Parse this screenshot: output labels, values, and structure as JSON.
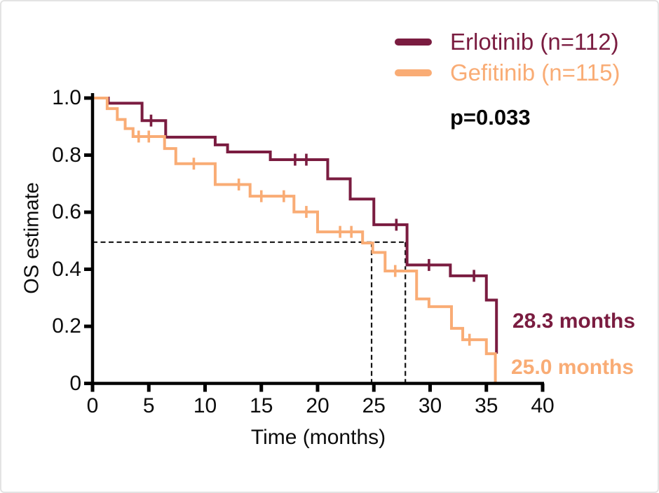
{
  "chart_data": {
    "type": "line",
    "subtype": "kaplan-meier-step",
    "title": "",
    "xlabel": "Time (months)",
    "ylabel": "OS estimate",
    "xlim": [
      0,
      40
    ],
    "ylim": [
      0,
      1
    ],
    "grid": false,
    "legend_position": "top-right",
    "x_ticks": [
      0,
      5,
      10,
      15,
      20,
      25,
      30,
      35,
      40
    ],
    "y_ticks": [
      {
        "value": 1.0,
        "label": "1.0"
      },
      {
        "value": 0.8,
        "label": "0.8"
      },
      {
        "value": 0.6,
        "label": "0.6"
      },
      {
        "value": 0.4,
        "label": "0.4"
      },
      {
        "value": 0.2,
        "label": "0.2"
      },
      {
        "value": 0.0,
        "label": "0"
      }
    ],
    "annotations": {
      "p_value": "p=0.033"
    },
    "median_dashes": {
      "y": 0.495,
      "h_start": 0,
      "h_end": 27.8,
      "verticals": [
        24.8,
        27.8
      ],
      "color": "#141414"
    },
    "series": [
      {
        "name": "Erlotinib (n=112)",
        "color": "#7A1C40",
        "median_label": "28.3 months",
        "median_months": 28.3,
        "points": [
          [
            0,
            1.0
          ],
          [
            1.4,
            0.982
          ],
          [
            4.4,
            0.921
          ],
          [
            6.5,
            0.863
          ],
          [
            10.9,
            0.836
          ],
          [
            12.0,
            0.811
          ],
          [
            15.8,
            0.784
          ],
          [
            20.9,
            0.717
          ],
          [
            22.9,
            0.646
          ],
          [
            25.0,
            0.556
          ],
          [
            27.95,
            0.415
          ],
          [
            31.8,
            0.377
          ],
          [
            35.0,
            0.292
          ],
          [
            35.9,
            0.104
          ]
        ],
        "censors": [
          [
            5.2,
            0.921
          ],
          [
            18.0,
            0.784
          ],
          [
            19.0,
            0.784
          ],
          [
            27.0,
            0.556
          ],
          [
            29.9,
            0.415
          ],
          [
            33.9,
            0.377
          ]
        ]
      },
      {
        "name": "Gefitinib (n=115)",
        "color": "#F9AC75",
        "median_label": "25.0 months",
        "median_months": 25.0,
        "points": [
          [
            0,
            1.0
          ],
          [
            1.3,
            0.963
          ],
          [
            2.2,
            0.925
          ],
          [
            2.9,
            0.893
          ],
          [
            3.6,
            0.865
          ],
          [
            6.4,
            0.823
          ],
          [
            7.4,
            0.77
          ],
          [
            10.9,
            0.697
          ],
          [
            14.0,
            0.656
          ],
          [
            17.9,
            0.601
          ],
          [
            20.0,
            0.531
          ],
          [
            24.0,
            0.492
          ],
          [
            24.9,
            0.459
          ],
          [
            26.0,
            0.394
          ],
          [
            28.8,
            0.296
          ],
          [
            29.9,
            0.269
          ],
          [
            31.9,
            0.193
          ],
          [
            32.9,
            0.153
          ],
          [
            35.0,
            0.104
          ],
          [
            35.8,
            0.0
          ]
        ],
        "censors": [
          [
            4.1,
            0.865
          ],
          [
            5.0,
            0.865
          ],
          [
            9.0,
            0.77
          ],
          [
            13.0,
            0.697
          ],
          [
            15.0,
            0.656
          ],
          [
            17.0,
            0.656
          ],
          [
            19.0,
            0.601
          ],
          [
            22.0,
            0.531
          ],
          [
            23.0,
            0.531
          ],
          [
            26.9,
            0.394
          ],
          [
            33.5,
            0.153
          ]
        ]
      }
    ]
  }
}
